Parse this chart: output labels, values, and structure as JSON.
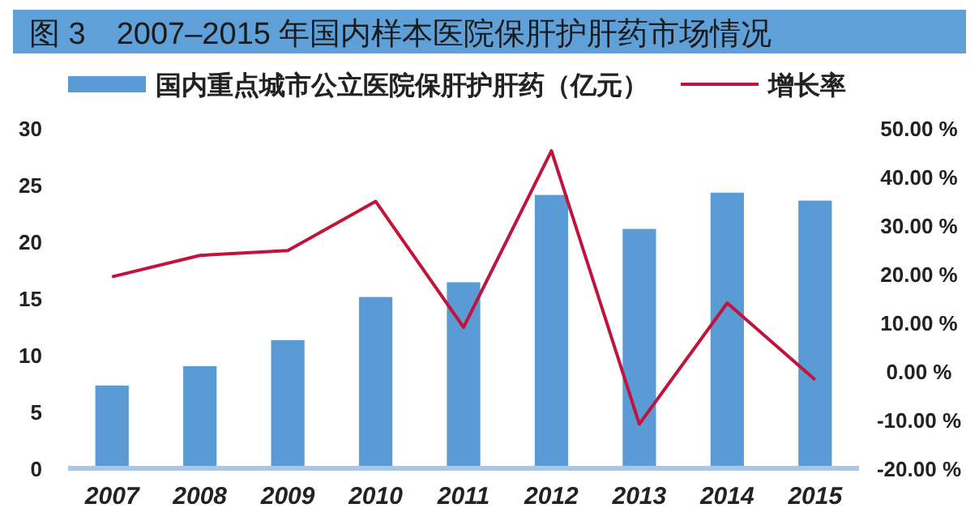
{
  "chart_data": {
    "type": "bar",
    "title": "图 3　2007–2015 年国内样本医院保肝护肝药市场情况",
    "categories": [
      "2007",
      "2008",
      "2009",
      "2010",
      "2011",
      "2012",
      "2013",
      "2014",
      "2015"
    ],
    "series": [
      {
        "name": "国内重点城市公立医院保肝护肝药（亿元）",
        "color": "#5b9bd5",
        "values": [
          7.3,
          9.0,
          11.3,
          15.1,
          16.4,
          24.1,
          21.1,
          24.3,
          23.6
        ]
      },
      {
        "name": "增长率",
        "type": "line",
        "axis": "y2",
        "color": "#c0143c",
        "values": [
          19.4,
          23.8,
          24.8,
          34.9,
          9.0,
          45.3,
          -10.9,
          14.0,
          -1.8
        ]
      }
    ],
    "ylim": [
      0,
      30
    ],
    "yticks": [
      0,
      5,
      10,
      15,
      20,
      25,
      30
    ],
    "y2lim": [
      -20,
      50
    ],
    "y2ticks": [
      {
        "value": 50,
        "label": "50.00 %"
      },
      {
        "value": 40,
        "label": "40.00 %"
      },
      {
        "value": 30,
        "label": "30.00 %"
      },
      {
        "value": 20,
        "label": "20.00 %"
      },
      {
        "value": 10,
        "label": "10.00 %"
      },
      {
        "value": 0,
        "label": "0.00 %"
      },
      {
        "value": -10,
        "label": "-10.00 %"
      },
      {
        "value": -20,
        "label": "-20.00 %"
      }
    ],
    "legend": "top",
    "grid": false,
    "marker": "none",
    "line_style": "solid"
  }
}
